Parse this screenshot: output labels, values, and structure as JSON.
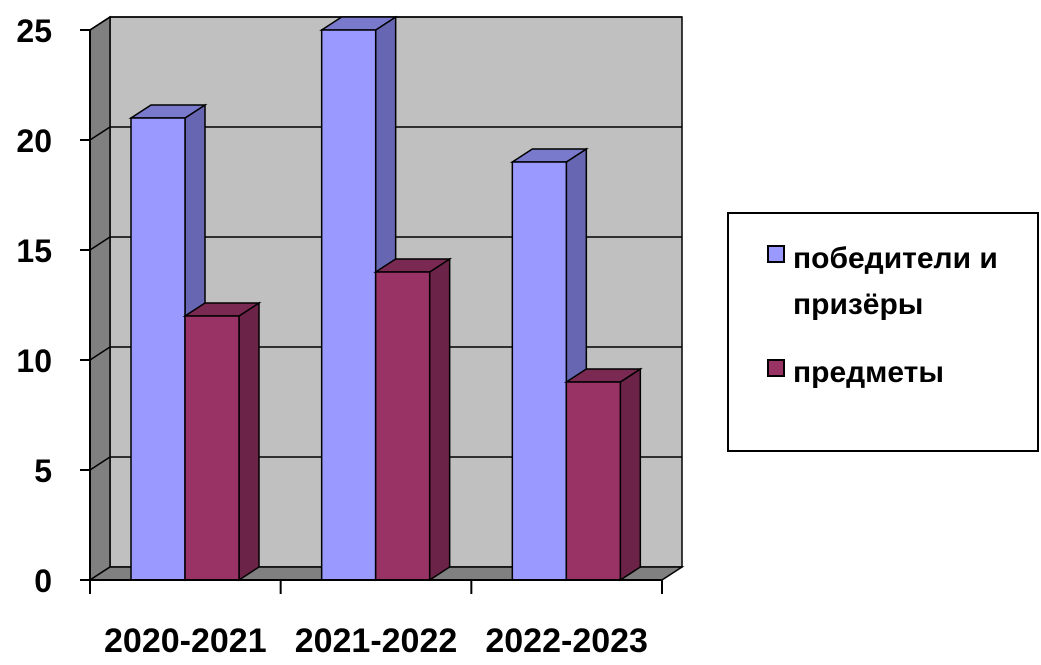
{
  "chart_data": {
    "type": "bar",
    "categories": [
      "2020-2021",
      "2021-2022",
      "2022-2023"
    ],
    "series": [
      {
        "name": "победители и призёры",
        "values": [
          21,
          25,
          19
        ]
      },
      {
        "name": "предметы",
        "values": [
          12,
          14,
          9
        ]
      }
    ],
    "ylim": [
      0,
      25
    ],
    "yticks": [
      "0",
      "5",
      "10",
      "15",
      "20",
      "25"
    ],
    "grid": true,
    "legend_position": "right"
  },
  "colors": {
    "series_front": [
      "#9999ff",
      "#993366"
    ],
    "series_side": [
      "#6666b3",
      "#6b2347"
    ],
    "series_top": [
      "#7a7acc",
      "#7a2952"
    ],
    "wall": "#c0c0c0",
    "left_wall": "#808080",
    "floor": "#808080"
  },
  "legend": {
    "item1": "победители и призёры",
    "item2": "предметы"
  }
}
